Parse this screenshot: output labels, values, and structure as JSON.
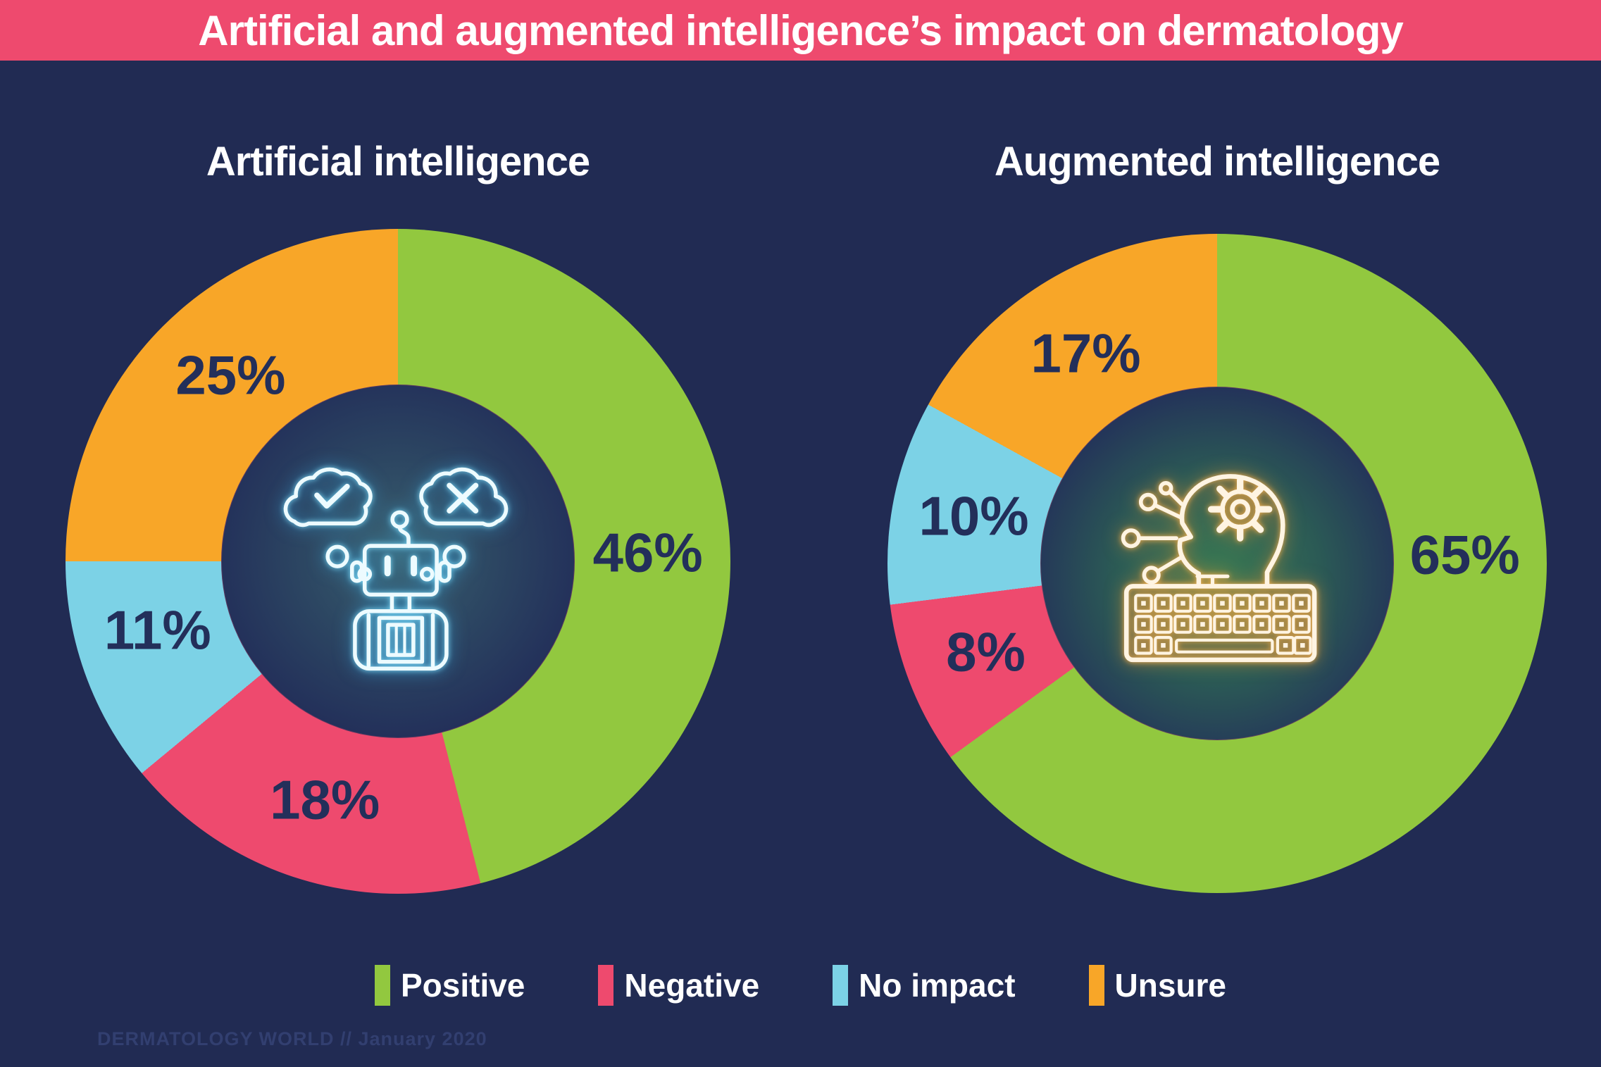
{
  "header": {
    "title": "Artificial and augmented intelligence’s impact on dermatology"
  },
  "chart_data": [
    {
      "type": "pie",
      "variant": "donut",
      "title": "Artificial intelligence",
      "center_icon": "robot-with-thought-clouds",
      "start_angle_deg": 0,
      "direction": "clockwise",
      "segments": [
        {
          "label": "Positive",
          "value_pct": 46,
          "color": "#92C83F",
          "label_angle_deg": 88
        },
        {
          "label": "Negative",
          "value_pct": 18,
          "color": "#EE4A6E",
          "label_angle_deg": 197
        },
        {
          "label": "No impact",
          "value_pct": 11,
          "color": "#7CD2E6",
          "label_angle_deg": 254
        },
        {
          "label": "Unsure",
          "value_pct": 25,
          "color": "#F8A628",
          "label_angle_deg": 318
        }
      ]
    },
    {
      "type": "pie",
      "variant": "donut",
      "title": "Augmented intelligence",
      "center_icon": "head-with-gear-and-keyboard",
      "start_angle_deg": 0,
      "direction": "clockwise",
      "segments": [
        {
          "label": "Positive",
          "value_pct": 65,
          "color": "#92C83F",
          "label_angle_deg": 88
        },
        {
          "label": "Negative",
          "value_pct": 8,
          "color": "#EE4A6E",
          "label_angle_deg": 249
        },
        {
          "label": "No impact",
          "value_pct": 10,
          "color": "#7CD2E6",
          "label_angle_deg": 281
        },
        {
          "label": "Unsure",
          "value_pct": 17,
          "color": "#F8A628",
          "label_angle_deg": 328
        }
      ]
    }
  ],
  "legend": {
    "items": [
      {
        "label": "Positive",
        "color": "#92C83F"
      },
      {
        "label": "Negative",
        "color": "#EE4A6E"
      },
      {
        "label": "No impact",
        "color": "#7CD2E6"
      },
      {
        "label": "Unsure",
        "color": "#F8A628"
      }
    ]
  },
  "footer": {
    "credit": "DERMATOLOGY WORLD // January 2020"
  },
  "colors": {
    "background": "#212B53",
    "banner": "#EE4A6E",
    "segment_label_text": "#232F5A",
    "title_text": "#FFFFFF"
  }
}
